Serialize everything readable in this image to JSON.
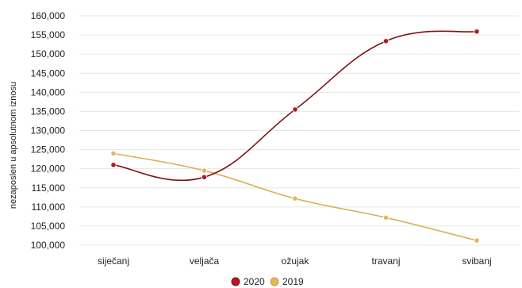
{
  "chart_data": {
    "type": "line",
    "categories": [
      "siječanj",
      "veljača",
      "ožujak",
      "travanj",
      "svibanj"
    ],
    "series": [
      {
        "name": "2020",
        "color": "#7a1416",
        "marker_color": "#b5191f",
        "values": [
          121000,
          117800,
          135500,
          153400,
          155900
        ]
      },
      {
        "name": "2019",
        "color": "#d8ae57",
        "marker_color": "#e3b85c",
        "values": [
          124000,
          119500,
          112200,
          107200,
          101200
        ]
      }
    ],
    "ylabel": "nezaposlen u apsolutnom iznosu",
    "xlabel": "",
    "ylim": [
      100000,
      160000
    ],
    "yticks": [
      100000,
      105000,
      110000,
      115000,
      120000,
      125000,
      130000,
      135000,
      140000,
      145000,
      150000,
      155000,
      160000
    ],
    "ytick_labels": [
      "100,000",
      "105,000",
      "110,000",
      "115,000",
      "120,000",
      "125,000",
      "130,000",
      "135,000",
      "140,000",
      "145,000",
      "150,000",
      "155,000",
      "160,000"
    ],
    "grid": true,
    "legend_position": "bottom-center"
  }
}
